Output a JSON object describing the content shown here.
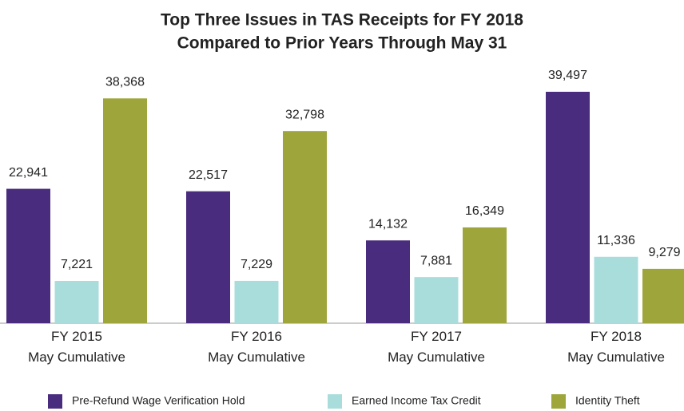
{
  "chart_data": {
    "type": "bar",
    "title": "Top Three Issues in TAS Receipts for FY 2018",
    "subtitle": "Compared to Prior Years Through May 31",
    "categories": [
      "FY 2015\nMay Cumulative",
      "FY 2016\nMay Cumulative",
      "FY 2017\nMay Cumulative",
      "FY 2018\nMay Cumulative"
    ],
    "series": [
      {
        "name": "Pre-Refund Wage Verification Hold",
        "color": "#4a2c7e",
        "values": [
          22941,
          22517,
          14132,
          39497
        ],
        "value_labels": [
          "22,941",
          "22,517",
          "14,132",
          "39,497"
        ]
      },
      {
        "name": "Earned Income Tax Credit",
        "color": "#a9dddc",
        "values": [
          7221,
          7229,
          7881,
          11336
        ],
        "value_labels": [
          "7,221",
          "7,229",
          "7,881",
          "11,336"
        ]
      },
      {
        "name": "Identity Theft",
        "color": "#9ea53b",
        "values": [
          38368,
          32798,
          16349,
          9279
        ],
        "value_labels": [
          "38,368",
          "32,798",
          "16,349",
          "9,279"
        ]
      }
    ]
  }
}
